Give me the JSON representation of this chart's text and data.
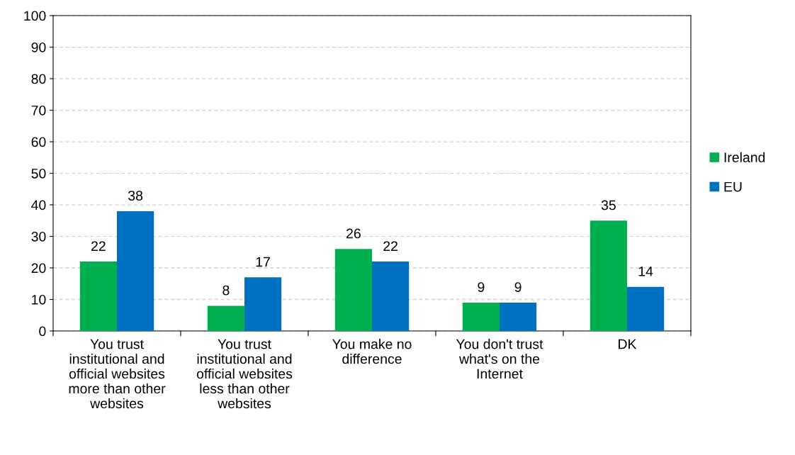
{
  "chart_data": {
    "type": "bar",
    "categories": [
      "You trust\ninstitutional and\nofficial websites\nmore than other\nwebsites",
      "You trust\ninstitutional and\nofficial websites\nless than other\nwebsites",
      "You make no\ndifference",
      "You don't trust\nwhat's on the\nInternet",
      "DK"
    ],
    "series": [
      {
        "name": "Ireland",
        "color": "#00b050",
        "values": [
          22,
          8,
          26,
          9,
          35
        ]
      },
      {
        "name": "EU",
        "color": "#0070c0",
        "values": [
          38,
          17,
          22,
          9,
          14
        ]
      }
    ],
    "ylim": [
      0,
      100
    ],
    "yticks": [
      0,
      10,
      20,
      30,
      40,
      50,
      60,
      70,
      80,
      90,
      100
    ],
    "grid": "y",
    "legend": "right",
    "data_labels": true
  }
}
